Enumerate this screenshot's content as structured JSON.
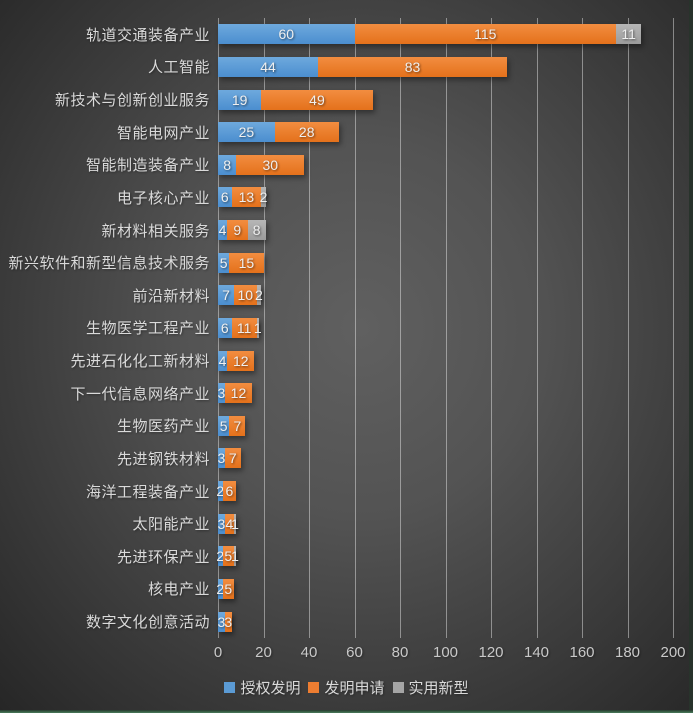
{
  "chart_data": {
    "type": "bar",
    "orientation": "horizontal",
    "stacked": true,
    "grid": true,
    "legend_position": "bottom",
    "show_data_labels": true,
    "xlim": [
      0,
      200
    ],
    "x_ticks": [
      0,
      20,
      40,
      60,
      80,
      100,
      120,
      140,
      160,
      180,
      200
    ],
    "categories": [
      "轨道交通装备产业",
      "人工智能",
      "新技术与创新创业服务",
      "智能电网产业",
      "智能制造装备产业",
      "电子核心产业",
      "新材料相关服务",
      "新兴软件和新型信息技术服务",
      "前沿新材料",
      "生物医学工程产业",
      "先进石化化工新材料",
      "下一代信息网络产业",
      "生物医药产业",
      "先进钢铁材料",
      "海洋工程装备产业",
      "太阳能产业",
      "先进环保产业",
      "核电产业",
      "数字文化创意活动"
    ],
    "series": [
      {
        "name": "授权发明",
        "color": "#5B9BD5",
        "values": [
          60,
          44,
          19,
          25,
          8,
          6,
          4,
          5,
          7,
          6,
          4,
          3,
          5,
          3,
          2,
          3,
          2,
          2,
          3
        ]
      },
      {
        "name": "发明申请",
        "color": "#ED7D31",
        "values": [
          115,
          83,
          49,
          28,
          30,
          13,
          9,
          15,
          10,
          11,
          12,
          12,
          7,
          7,
          6,
          4,
          5,
          5,
          3
        ]
      },
      {
        "name": "实用新型",
        "color": "#A5A5A5",
        "values": [
          11,
          0,
          0,
          0,
          0,
          2,
          8,
          0,
          2,
          1,
          0,
          0,
          0,
          0,
          0,
          1,
          1,
          0,
          0
        ]
      }
    ]
  },
  "colors": {
    "background_center": "#606060",
    "background_edge": "#262626",
    "gridline": "rgba(255,255,255,0.42)",
    "category_text": "#dadada",
    "tick_text": "#c9c9c9",
    "data_label_text": "#efefef",
    "edge_strip_right": "#28332b",
    "edge_strip_bottom": "#4a7c5c"
  }
}
